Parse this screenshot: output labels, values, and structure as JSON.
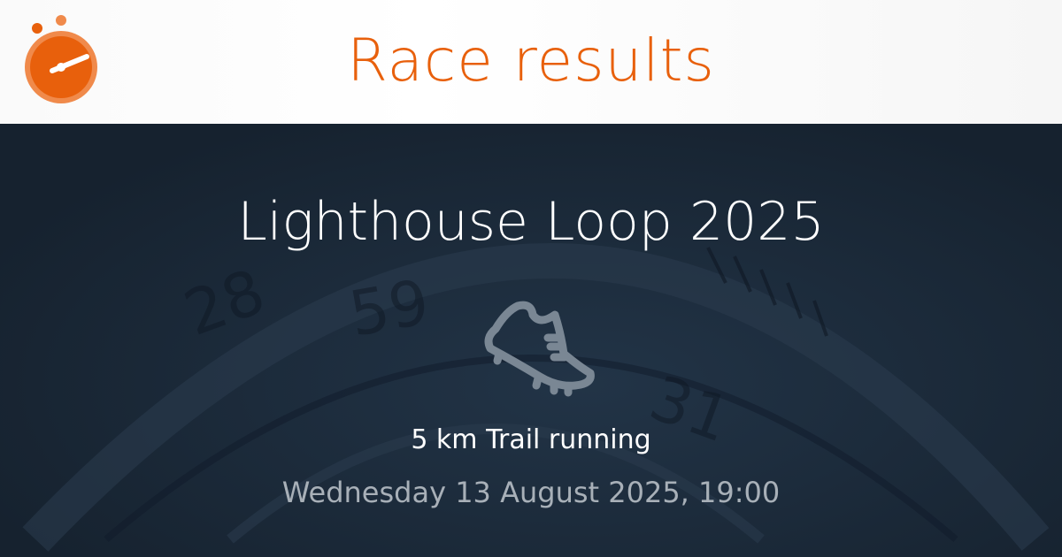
{
  "header": {
    "title": "Race results",
    "logo_icon": "stopwatch-icon",
    "accent_color": "#e8600c"
  },
  "event": {
    "title": "Lighthouse Loop 2025",
    "sport_icon": "running-shoe-icon",
    "type": "5 km Trail running",
    "datetime": "Wednesday 13 August 2025, 19:00"
  }
}
